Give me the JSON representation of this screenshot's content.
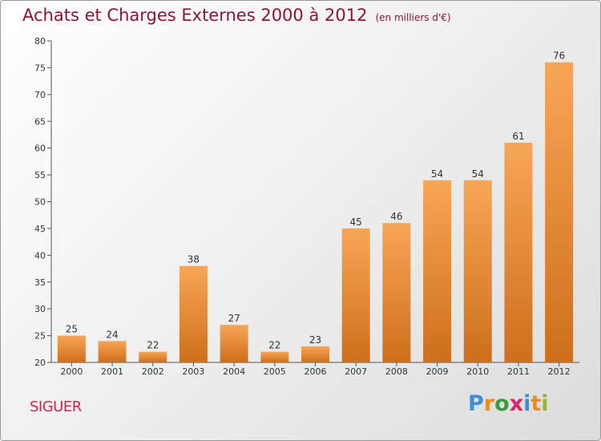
{
  "title": "Achats et Charges Externes 2000 à 2012",
  "subtitle": "(en milliers d'€)",
  "commune": "SIGUER",
  "brand": {
    "letters": [
      "P",
      "r",
      "o",
      "x",
      "i",
      "t",
      "i"
    ]
  },
  "colors": {
    "title": "#8a1535",
    "commune": "#c8294f",
    "bar_top": "#f8a656",
    "bar_bottom": "#cd6f1c",
    "brand": [
      "#3f8fd6",
      "#f08a1c",
      "#3b9e3b",
      "#d8246a",
      "#3f8fd6",
      "#f08a1c",
      "#8fb83a"
    ]
  },
  "chart_data": {
    "type": "bar",
    "title": "Achats et Charges Externes 2000 à 2012",
    "subtitle": "(en milliers d'€)",
    "categories": [
      "2000",
      "2001",
      "2002",
      "2003",
      "2004",
      "2005",
      "2006",
      "2007",
      "2008",
      "2009",
      "2010",
      "2011",
      "2012"
    ],
    "values": [
      25,
      24,
      22,
      38,
      27,
      22,
      23,
      45,
      46,
      54,
      54,
      61,
      76
    ],
    "ylim": [
      20,
      80
    ],
    "yticks": [
      20,
      25,
      30,
      35,
      40,
      45,
      50,
      55,
      60,
      65,
      70,
      75,
      80
    ],
    "grid": false,
    "legend": "none"
  }
}
